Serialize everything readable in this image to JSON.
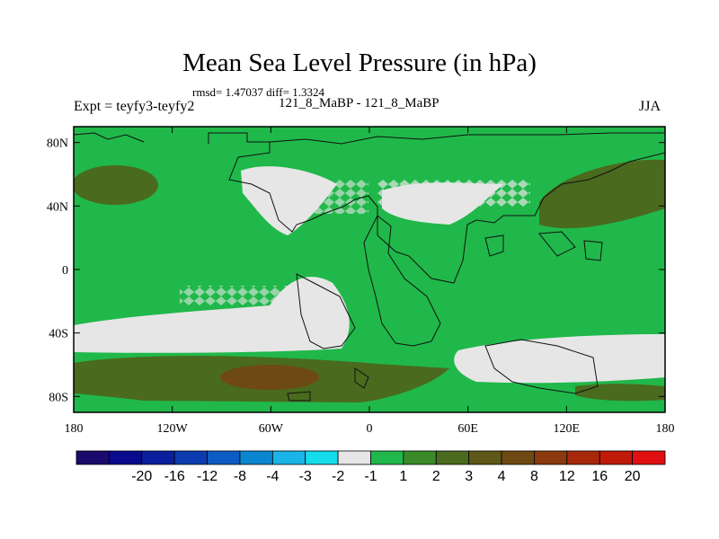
{
  "chart_data": {
    "type": "heatmap",
    "title": "Mean Sea Level Pressure (in hPa)",
    "stats_line": "rmsd= 1.47037 diff= 1.3324",
    "left_label": "Expt = teyfy3-teyfy2",
    "center_label": "121_8_MaBP - 121_8_MaBP",
    "right_label": "JJA",
    "x_axis": {
      "range": [
        -180,
        180
      ],
      "ticks": [
        -180,
        -120,
        -60,
        0,
        60,
        120,
        180
      ],
      "tick_labels": [
        "180",
        "120W",
        "60W",
        "0",
        "60E",
        "120E",
        "180"
      ]
    },
    "y_axis": {
      "range": [
        -90,
        90
      ],
      "ticks": [
        80,
        40,
        0,
        -40,
        -80
      ],
      "tick_labels": [
        "80N",
        "40N",
        "0",
        "40S",
        "80S"
      ]
    },
    "colorbar": {
      "colors": [
        "#1a0a6b",
        "#0a0a8c",
        "#0a1f9e",
        "#0d3cb0",
        "#0d5cc4",
        "#0a86d0",
        "#1ab4e6",
        "#14dcea",
        "#e6e6e6",
        "#20b84a",
        "#3a8a2a",
        "#4a6a1e",
        "#5e5818",
        "#6e4a12",
        "#8a3a0c",
        "#a8280a",
        "#c01a08",
        "#e01010"
      ],
      "labels": [
        "-20",
        "-16",
        "-12",
        "-8",
        "-4",
        "-3",
        "-2",
        "-1",
        "1",
        "2",
        "3",
        "4",
        "8",
        "12",
        "16",
        "20"
      ]
    },
    "field_summary": {
      "background_class": "1 to 2",
      "regions": [
        {
          "name": "north-pacific-high",
          "class": "2 to 3"
        },
        {
          "name": "north-atlantic-central-asia-low",
          "class": "-1 to 1"
        },
        {
          "name": "southern-ocean-band-west",
          "class": "-1 to 1"
        },
        {
          "name": "southern-ocean-band-east",
          "class": "-1 to 1"
        },
        {
          "name": "south-pacific-high",
          "class": "2 to 4"
        },
        {
          "name": "north-west-pacific-high",
          "class": "2 to 3"
        }
      ]
    }
  }
}
